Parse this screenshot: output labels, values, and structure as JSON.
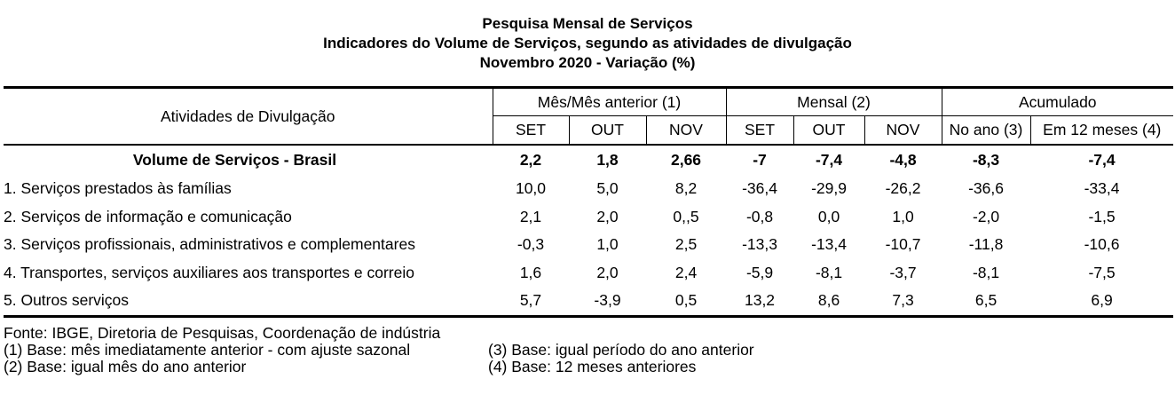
{
  "titles": {
    "line1": "Pesquisa Mensal de Serviços",
    "line2": "Indicadores do Volume de Serviços, segundo as atividades de divulgação",
    "line3": "Novembro 2020 - Variação (%)"
  },
  "header": {
    "activities_label": "Atividades de Divulgação",
    "groups": {
      "mes_mes": "Mês/Mês anterior (1)",
      "mensal": "Mensal (2)",
      "acumulado": "Acumulado"
    },
    "subs": {
      "mes_mes": [
        "SET",
        "OUT",
        "NOV"
      ],
      "mensal": [
        "SET",
        "OUT",
        "NOV"
      ],
      "acumulado": [
        "No ano (3)",
        "Em 12 meses (4)"
      ]
    }
  },
  "rows": [
    {
      "label": "Volume de Serviços - Brasil",
      "values": [
        "2,2",
        "1,8",
        "2,66",
        "-7",
        "-7,4",
        "-4,8",
        "-8,3",
        "-7,4"
      ]
    },
    {
      "label": "1. Serviços prestados às famílias",
      "values": [
        "10,0",
        "5,0",
        "8,2",
        "-36,4",
        "-29,9",
        "-26,2",
        "-36,6",
        "-33,4"
      ]
    },
    {
      "label": "2. Serviços de informação e comunicação",
      "values": [
        "2,1",
        "2,0",
        "0,,5",
        "-0,8",
        "0,0",
        "1,0",
        "-2,0",
        "-1,5"
      ]
    },
    {
      "label": "3. Serviços profissionais, administrativos e complementares",
      "values": [
        "-0,3",
        "1,0",
        "2,5",
        "-13,3",
        "-13,4",
        "-10,7",
        "-11,8",
        "-10,6"
      ]
    },
    {
      "label": "4. Transportes, serviços auxiliares aos transportes e correio",
      "values": [
        "1,6",
        "2,0",
        "2,4",
        "-5,9",
        "-8,1",
        "-3,7",
        "-8,1",
        "-7,5"
      ]
    },
    {
      "label": "5. Outros serviços",
      "values": [
        "5,7",
        "-3,9",
        "0,5",
        "13,2",
        "8,6",
        "7,3",
        "6,5",
        "6,9"
      ]
    }
  ],
  "notes": {
    "source": "Fonte: IBGE, Diretoria de Pesquisas, Coordenação de indústria",
    "note1": "(1) Base: mês imediatamente anterior - com ajuste sazonal",
    "note2": "(2) Base: igual mês do ano anterior",
    "note3": "(3) Base: igual período do ano anterior",
    "note4": "(4) Base: 12 meses anteriores"
  }
}
